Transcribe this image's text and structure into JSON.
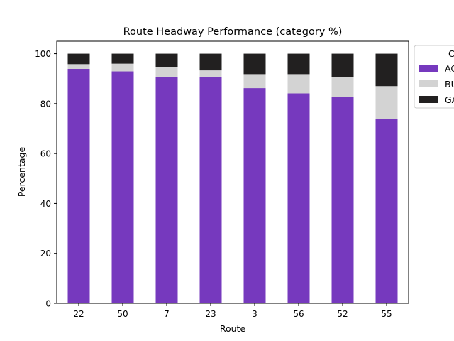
{
  "chart_data": {
    "type": "bar",
    "stacked": true,
    "title": "Route Headway Performance (category %)",
    "xlabel": "Route",
    "ylabel": "Percentage",
    "ylim": [
      0,
      105
    ],
    "yticks": [
      "0",
      "20",
      "40",
      "60",
      "80",
      "100"
    ],
    "categories": [
      "22",
      "50",
      "7",
      "23",
      "3",
      "56",
      "52",
      "55"
    ],
    "series": [
      {
        "name": "AC",
        "color": "#7639be",
        "values": [
          93.9,
          92.9,
          90.8,
          90.8,
          86.2,
          84.1,
          82.8,
          73.7
        ]
      },
      {
        "name": "BU",
        "color": "#d3d3d3",
        "values": [
          1.9,
          3.1,
          3.8,
          2.5,
          5.6,
          7.7,
          7.7,
          13.3
        ]
      },
      {
        "name": "GA",
        "color": "#222020",
        "values": [
          4.2,
          4.0,
          5.4,
          6.7,
          8.2,
          8.2,
          9.5,
          13.0
        ]
      }
    ],
    "legend": {
      "title": "C",
      "position": "outside-top-right"
    },
    "grid": false
  }
}
